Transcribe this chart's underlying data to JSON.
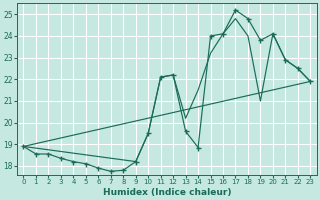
{
  "xlabel": "Humidex (Indice chaleur)",
  "xlim": [
    -0.5,
    23.5
  ],
  "ylim": [
    17.6,
    25.5
  ],
  "yticks": [
    18,
    19,
    20,
    21,
    22,
    23,
    24,
    25
  ],
  "xticks": [
    0,
    1,
    2,
    3,
    4,
    5,
    6,
    7,
    8,
    9,
    10,
    11,
    12,
    13,
    14,
    15,
    16,
    17,
    18,
    19,
    20,
    21,
    22,
    23
  ],
  "bg_color": "#c5e8e0",
  "line_color": "#1a6b5a",
  "grid_color": "#ffffff",
  "line1_x": [
    0,
    1,
    2,
    3,
    4,
    5,
    6,
    7,
    8,
    9,
    10,
    11,
    12,
    13,
    14,
    15,
    16,
    17,
    18,
    19,
    20,
    21,
    22,
    23
  ],
  "line1_y": [
    18.9,
    18.55,
    18.55,
    18.35,
    18.2,
    18.1,
    17.9,
    17.75,
    17.8,
    18.2,
    19.5,
    22.1,
    22.2,
    19.6,
    18.85,
    24.0,
    24.1,
    25.2,
    24.8,
    23.8,
    24.1,
    22.9,
    22.5,
    21.9
  ],
  "line2_x": [
    0,
    23
  ],
  "line2_y": [
    18.9,
    21.9
  ],
  "line3_x": [
    0,
    9,
    10,
    11,
    12,
    13,
    14,
    15,
    16,
    17,
    18,
    19,
    20,
    21,
    22,
    23
  ],
  "line3_y": [
    18.9,
    18.2,
    19.5,
    22.1,
    22.2,
    20.2,
    21.5,
    23.2,
    24.1,
    24.8,
    24.0,
    21.0,
    24.1,
    22.9,
    22.5,
    21.9
  ]
}
